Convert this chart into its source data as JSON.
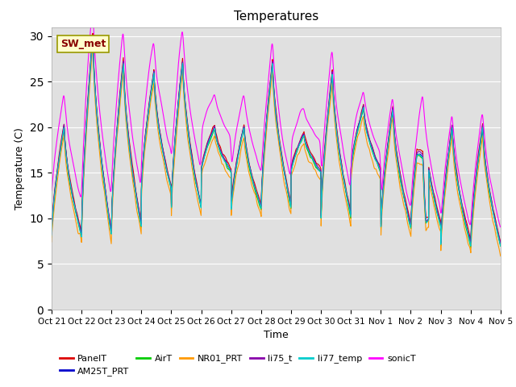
{
  "title": "Temperatures",
  "xlabel": "Time",
  "ylabel": "Temperature (C)",
  "ylim": [
    0,
    31
  ],
  "yticks": [
    0,
    5,
    10,
    15,
    20,
    25,
    30
  ],
  "annotation_text": "SW_met",
  "bg_color": "#e0e0e0",
  "colors": {
    "PanelT": "#dd0000",
    "AM25T_PRT": "#0000cc",
    "AirT": "#00cc00",
    "NR01_PRT": "#ff9900",
    "li75_t": "#8800aa",
    "li77_temp": "#00cccc",
    "sonicT": "#ff00ff"
  },
  "xtick_labels": [
    "Oct 21",
    "Oct 22",
    "Oct 23",
    "Oct 24",
    "Oct 25",
    "Oct 26",
    "Oct 27",
    "Oct 28",
    "Oct 29",
    "Oct 30",
    "Oct 31",
    "Nov 1",
    "Nov 2",
    "Nov 3",
    "Nov 4",
    "Nov 5"
  ]
}
